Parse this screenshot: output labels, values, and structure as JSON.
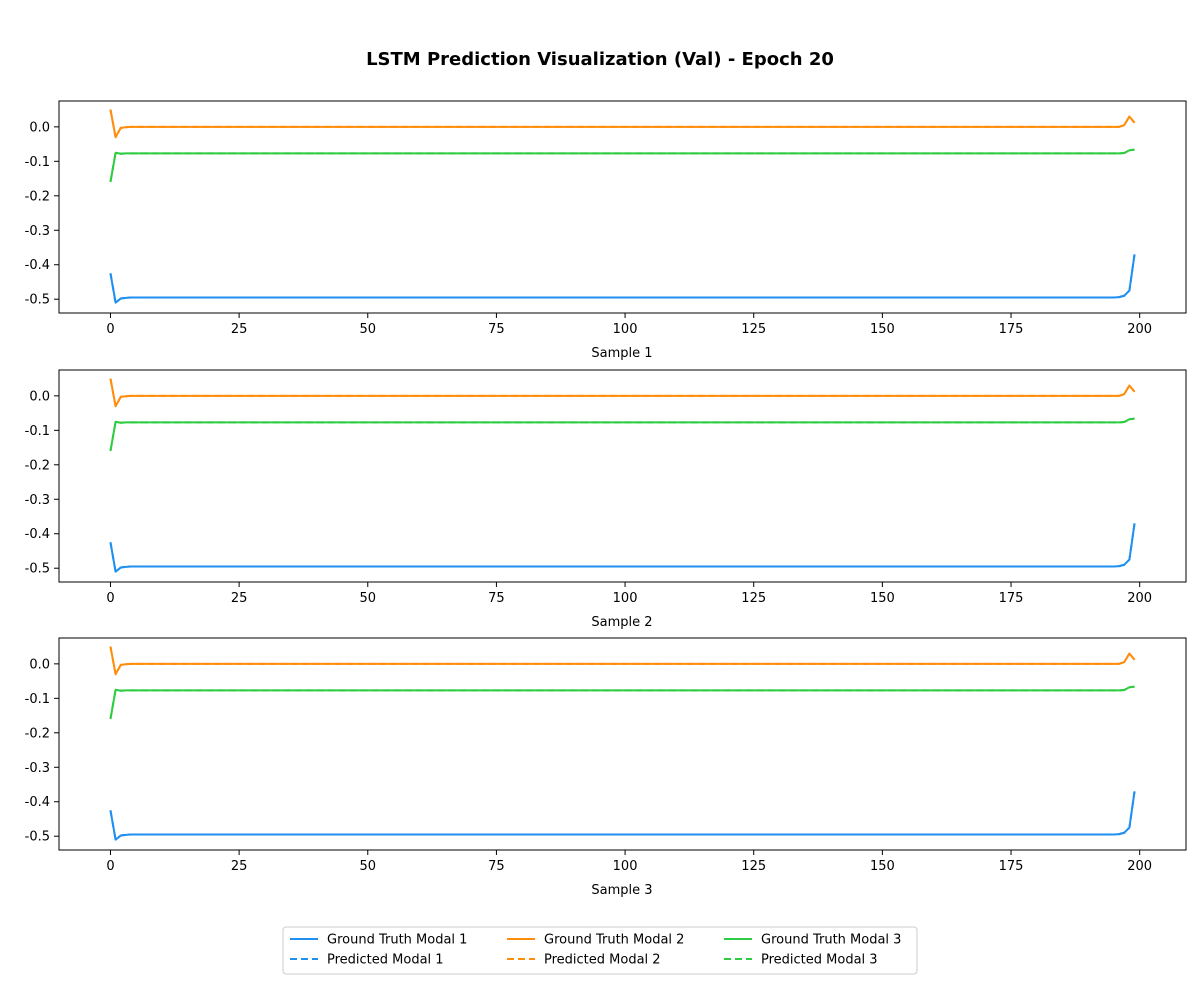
{
  "chart_data": {
    "type": "line",
    "title": "LSTM Prediction Visualization (Val) - Epoch 20",
    "grid": false,
    "legend_placement": "bottom-center",
    "colors": {
      "modal_1": "#1f8ff0",
      "modal_2": "#ff8c0a",
      "modal_3": "#2ecc40"
    },
    "series_styles": {
      "ground_truth": "solid",
      "predicted": "dashed"
    },
    "legend": [
      {
        "label": "Ground Truth Modal 1",
        "color_key": "modal_1",
        "style": "solid"
      },
      {
        "label": "Predicted Modal 1",
        "color_key": "modal_1",
        "style": "dashed"
      },
      {
        "label": "Ground Truth Modal 2",
        "color_key": "modal_2",
        "style": "solid"
      },
      {
        "label": "Predicted Modal 2",
        "color_key": "modal_2",
        "style": "dashed"
      },
      {
        "label": "Ground Truth Modal 3",
        "color_key": "modal_3",
        "style": "solid"
      },
      {
        "label": "Predicted Modal 3",
        "color_key": "modal_3",
        "style": "dashed"
      }
    ],
    "panels": [
      {
        "xlabel": "Sample 1",
        "xlim": [
          -10,
          209
        ],
        "ylim": [
          -0.54,
          0.075
        ],
        "xticks": [
          0,
          25,
          50,
          75,
          100,
          125,
          150,
          175,
          200
        ],
        "yticks": [
          "0.0",
          "-0.1",
          "-0.2",
          "-0.3",
          "-0.4",
          "-0.5"
        ],
        "series": [
          {
            "name": "Ground Truth Modal 1",
            "color_key": "modal_1",
            "style": "solid",
            "points": [
              [
                0,
                -0.425
              ],
              [
                1,
                -0.51
              ],
              [
                2,
                -0.498
              ],
              [
                3,
                -0.496
              ],
              [
                4,
                -0.495
              ],
              [
                5,
                -0.495
              ],
              [
                195,
                -0.495
              ],
              [
                196,
                -0.494
              ],
              [
                197,
                -0.49
              ],
              [
                198,
                -0.475
              ],
              [
                199,
                -0.37
              ]
            ]
          },
          {
            "name": "Predicted Modal 1",
            "color_key": "modal_1",
            "style": "dashed",
            "points": [
              [
                0,
                -0.425
              ],
              [
                1,
                -0.51
              ],
              [
                2,
                -0.498
              ],
              [
                3,
                -0.496
              ],
              [
                4,
                -0.495
              ],
              [
                5,
                -0.495
              ],
              [
                195,
                -0.495
              ],
              [
                196,
                -0.494
              ],
              [
                197,
                -0.49
              ],
              [
                198,
                -0.475
              ],
              [
                199,
                -0.37
              ]
            ]
          },
          {
            "name": "Ground Truth Modal 2",
            "color_key": "modal_2",
            "style": "solid",
            "points": [
              [
                0,
                0.05
              ],
              [
                1,
                -0.03
              ],
              [
                2,
                -0.003
              ],
              [
                3,
                -0.001
              ],
              [
                4,
                0.0
              ],
              [
                196,
                0.0
              ],
              [
                197,
                0.005
              ],
              [
                198,
                0.03
              ],
              [
                199,
                0.012
              ]
            ]
          },
          {
            "name": "Predicted Modal 2",
            "color_key": "modal_2",
            "style": "dashed",
            "points": [
              [
                0,
                0.05
              ],
              [
                1,
                -0.03
              ],
              [
                2,
                -0.003
              ],
              [
                3,
                -0.001
              ],
              [
                4,
                0.0
              ],
              [
                196,
                0.0
              ],
              [
                197,
                0.005
              ],
              [
                198,
                0.03
              ],
              [
                199,
                0.012
              ]
            ]
          },
          {
            "name": "Ground Truth Modal 3",
            "color_key": "modal_3",
            "style": "solid",
            "points": [
              [
                0,
                -0.16
              ],
              [
                1,
                -0.075
              ],
              [
                2,
                -0.078
              ],
              [
                3,
                -0.077
              ],
              [
                4,
                -0.077
              ],
              [
                196,
                -0.077
              ],
              [
                197,
                -0.076
              ],
              [
                198,
                -0.068
              ],
              [
                199,
                -0.066
              ]
            ]
          },
          {
            "name": "Predicted Modal 3",
            "color_key": "modal_3",
            "style": "dashed",
            "points": [
              [
                0,
                -0.16
              ],
              [
                1,
                -0.075
              ],
              [
                2,
                -0.078
              ],
              [
                3,
                -0.077
              ],
              [
                4,
                -0.077
              ],
              [
                196,
                -0.077
              ],
              [
                197,
                -0.076
              ],
              [
                198,
                -0.068
              ],
              [
                199,
                -0.066
              ]
            ]
          }
        ]
      },
      {
        "xlabel": "Sample 2",
        "xlim": [
          -10,
          209
        ],
        "ylim": [
          -0.54,
          0.075
        ],
        "xticks": [
          0,
          25,
          50,
          75,
          100,
          125,
          150,
          175,
          200
        ],
        "yticks": [
          "0.0",
          "-0.1",
          "-0.2",
          "-0.3",
          "-0.4",
          "-0.5"
        ],
        "series": [
          {
            "name": "Ground Truth Modal 1",
            "color_key": "modal_1",
            "style": "solid",
            "points": [
              [
                0,
                -0.425
              ],
              [
                1,
                -0.51
              ],
              [
                2,
                -0.498
              ],
              [
                3,
                -0.496
              ],
              [
                4,
                -0.495
              ],
              [
                5,
                -0.495
              ],
              [
                195,
                -0.495
              ],
              [
                196,
                -0.494
              ],
              [
                197,
                -0.49
              ],
              [
                198,
                -0.475
              ],
              [
                199,
                -0.37
              ]
            ]
          },
          {
            "name": "Predicted Modal 1",
            "color_key": "modal_1",
            "style": "dashed",
            "points": [
              [
                0,
                -0.425
              ],
              [
                1,
                -0.51
              ],
              [
                2,
                -0.498
              ],
              [
                3,
                -0.496
              ],
              [
                4,
                -0.495
              ],
              [
                5,
                -0.495
              ],
              [
                195,
                -0.495
              ],
              [
                196,
                -0.494
              ],
              [
                197,
                -0.49
              ],
              [
                198,
                -0.475
              ],
              [
                199,
                -0.37
              ]
            ]
          },
          {
            "name": "Ground Truth Modal 2",
            "color_key": "modal_2",
            "style": "solid",
            "points": [
              [
                0,
                0.05
              ],
              [
                1,
                -0.03
              ],
              [
                2,
                -0.003
              ],
              [
                3,
                -0.001
              ],
              [
                4,
                0.0
              ],
              [
                196,
                0.0
              ],
              [
                197,
                0.005
              ],
              [
                198,
                0.03
              ],
              [
                199,
                0.012
              ]
            ]
          },
          {
            "name": "Predicted Modal 2",
            "color_key": "modal_2",
            "style": "dashed",
            "points": [
              [
                0,
                0.05
              ],
              [
                1,
                -0.03
              ],
              [
                2,
                -0.003
              ],
              [
                3,
                -0.001
              ],
              [
                4,
                0.0
              ],
              [
                196,
                0.0
              ],
              [
                197,
                0.005
              ],
              [
                198,
                0.03
              ],
              [
                199,
                0.012
              ]
            ]
          },
          {
            "name": "Ground Truth Modal 3",
            "color_key": "modal_3",
            "style": "solid",
            "points": [
              [
                0,
                -0.16
              ],
              [
                1,
                -0.075
              ],
              [
                2,
                -0.078
              ],
              [
                3,
                -0.077
              ],
              [
                4,
                -0.077
              ],
              [
                196,
                -0.077
              ],
              [
                197,
                -0.076
              ],
              [
                198,
                -0.068
              ],
              [
                199,
                -0.066
              ]
            ]
          },
          {
            "name": "Predicted Modal 3",
            "color_key": "modal_3",
            "style": "dashed",
            "points": [
              [
                0,
                -0.16
              ],
              [
                1,
                -0.075
              ],
              [
                2,
                -0.078
              ],
              [
                3,
                -0.077
              ],
              [
                4,
                -0.077
              ],
              [
                196,
                -0.077
              ],
              [
                197,
                -0.076
              ],
              [
                198,
                -0.068
              ],
              [
                199,
                -0.066
              ]
            ]
          }
        ]
      },
      {
        "xlabel": "Sample 3",
        "xlim": [
          -10,
          209
        ],
        "ylim": [
          -0.54,
          0.075
        ],
        "xticks": [
          0,
          25,
          50,
          75,
          100,
          125,
          150,
          175,
          200
        ],
        "yticks": [
          "0.0",
          "-0.1",
          "-0.2",
          "-0.3",
          "-0.4",
          "-0.5"
        ],
        "series": [
          {
            "name": "Ground Truth Modal 1",
            "color_key": "modal_1",
            "style": "solid",
            "points": [
              [
                0,
                -0.425
              ],
              [
                1,
                -0.51
              ],
              [
                2,
                -0.498
              ],
              [
                3,
                -0.496
              ],
              [
                4,
                -0.495
              ],
              [
                5,
                -0.495
              ],
              [
                195,
                -0.495
              ],
              [
                196,
                -0.494
              ],
              [
                197,
                -0.49
              ],
              [
                198,
                -0.475
              ],
              [
                199,
                -0.37
              ]
            ]
          },
          {
            "name": "Predicted Modal 1",
            "color_key": "modal_1",
            "style": "dashed",
            "points": [
              [
                0,
                -0.425
              ],
              [
                1,
                -0.51
              ],
              [
                2,
                -0.498
              ],
              [
                3,
                -0.496
              ],
              [
                4,
                -0.495
              ],
              [
                5,
                -0.495
              ],
              [
                195,
                -0.495
              ],
              [
                196,
                -0.494
              ],
              [
                197,
                -0.49
              ],
              [
                198,
                -0.475
              ],
              [
                199,
                -0.37
              ]
            ]
          },
          {
            "name": "Ground Truth Modal 2",
            "color_key": "modal_2",
            "style": "solid",
            "points": [
              [
                0,
                0.05
              ],
              [
                1,
                -0.03
              ],
              [
                2,
                -0.003
              ],
              [
                3,
                -0.001
              ],
              [
                4,
                0.0
              ],
              [
                196,
                0.0
              ],
              [
                197,
                0.005
              ],
              [
                198,
                0.03
              ],
              [
                199,
                0.012
              ]
            ]
          },
          {
            "name": "Predicted Modal 2",
            "color_key": "modal_2",
            "style": "dashed",
            "points": [
              [
                0,
                0.05
              ],
              [
                1,
                -0.03
              ],
              [
                2,
                -0.003
              ],
              [
                3,
                -0.001
              ],
              [
                4,
                0.0
              ],
              [
                196,
                0.0
              ],
              [
                197,
                0.005
              ],
              [
                198,
                0.03
              ],
              [
                199,
                0.012
              ]
            ]
          },
          {
            "name": "Ground Truth Modal 3",
            "color_key": "modal_3",
            "style": "solid",
            "points": [
              [
                0,
                -0.16
              ],
              [
                1,
                -0.075
              ],
              [
                2,
                -0.078
              ],
              [
                3,
                -0.077
              ],
              [
                4,
                -0.077
              ],
              [
                196,
                -0.077
              ],
              [
                197,
                -0.076
              ],
              [
                198,
                -0.068
              ],
              [
                199,
                -0.066
              ]
            ]
          },
          {
            "name": "Predicted Modal 3",
            "color_key": "modal_3",
            "style": "dashed",
            "points": [
              [
                0,
                -0.16
              ],
              [
                1,
                -0.075
              ],
              [
                2,
                -0.078
              ],
              [
                3,
                -0.077
              ],
              [
                4,
                -0.077
              ],
              [
                196,
                -0.077
              ],
              [
                197,
                -0.076
              ],
              [
                198,
                -0.068
              ],
              [
                199,
                -0.066
              ]
            ]
          }
        ]
      }
    ]
  }
}
